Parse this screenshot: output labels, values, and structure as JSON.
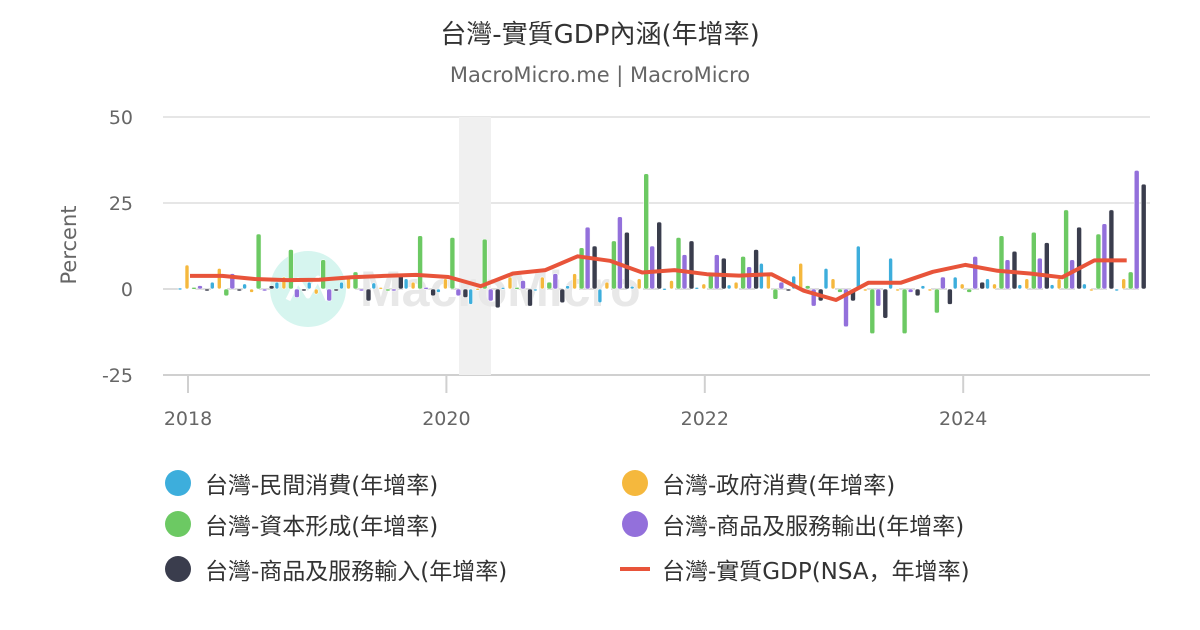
{
  "header": {
    "title": "台灣-實質GDP內涵(年增率)",
    "subtitle": "MacroMicro.me | MacroMicro"
  },
  "watermark": "MacroMicro",
  "chart_data": {
    "type": "bar",
    "title": "台灣-實質GDP內涵(年增率)",
    "subtitle": "MacroMicro.me | MacroMicro",
    "xlabel": "",
    "ylabel": "Percent",
    "ylim": [
      -25,
      50
    ],
    "yticks": [
      50,
      25,
      0,
      -25
    ],
    "xticks": [
      "2018",
      "2020",
      "2022",
      "2024"
    ],
    "grid": true,
    "legend_position": "bottom",
    "shaded_region": {
      "from": "2020Q2",
      "to": "2020Q3"
    },
    "categories": [
      "2018Q1",
      "2018Q2",
      "2018Q3",
      "2018Q4",
      "2019Q1",
      "2019Q2",
      "2019Q3",
      "2019Q4",
      "2020Q1",
      "2020Q2",
      "2020Q3",
      "2020Q4",
      "2021Q1",
      "2021Q2",
      "2021Q3",
      "2021Q4",
      "2022Q1",
      "2022Q2",
      "2022Q3",
      "2022Q4",
      "2023Q1",
      "2023Q2",
      "2023Q3",
      "2023Q4",
      "2024Q1",
      "2024Q2",
      "2024Q3",
      "2024Q4",
      "2025Q1",
      "2025Q2"
    ],
    "series": [
      {
        "name": "台灣-民間消費(年增率)",
        "type": "bar",
        "color": "#3DAEDC",
        "values": [
          0.3,
          2.0,
          1.5,
          2.0,
          2.0,
          2.0,
          1.8,
          3.0,
          -1.0,
          -4.5,
          0.5,
          -0.5,
          1.0,
          -4.0,
          0.8,
          0.2,
          0.5,
          1.2,
          7.5,
          3.8,
          6.0,
          12.5,
          9.0,
          1.0,
          3.5,
          3.0,
          1.3,
          1.3,
          1.5,
          0.0
        ]
      },
      {
        "name": "台灣-政府消費(年增率)",
        "type": "bar",
        "color": "#F5B83D",
        "values": [
          7.0,
          6.0,
          -1.0,
          3.5,
          -1.5,
          3.5,
          0.5,
          2.0,
          3.0,
          0.2,
          3.5,
          3.5,
          4.5,
          2.0,
          3.0,
          2.5,
          1.5,
          2.0,
          4.5,
          7.5,
          3.0,
          0.0,
          0.0,
          0.0,
          1.5,
          1.5,
          3.0,
          3.0,
          0.0,
          3.0
        ]
      },
      {
        "name": "台灣-資本形成(年增率)",
        "type": "bar",
        "color": "#6CC963",
        "values": [
          0.5,
          -2.0,
          16.0,
          11.5,
          8.5,
          5.0,
          -0.5,
          15.5,
          15.0,
          14.5,
          0.5,
          2.0,
          12.0,
          14.0,
          33.5,
          15.0,
          4.0,
          9.5,
          -3.0,
          1.0,
          -1.0,
          -13.0,
          -13.0,
          -7.0,
          -1.0,
          15.5,
          16.5,
          23.0,
          16.0,
          5.0
        ]
      },
      {
        "name": "台灣-商品及服務輸出(年增率)",
        "type": "bar",
        "color": "#9370DB",
        "values": [
          1.0,
          4.5,
          0.0,
          -2.5,
          -3.5,
          0.0,
          0.0,
          0.5,
          -2.0,
          -3.5,
          2.5,
          4.5,
          18.0,
          21.0,
          12.5,
          10.0,
          10.0,
          6.5,
          2.0,
          -5.0,
          -11.0,
          -5.0,
          -1.0,
          3.5,
          9.5,
          8.5,
          9.0,
          8.5,
          19.0,
          34.5
        ]
      },
      {
        "name": "台灣-商品及服務輸入(年增率)",
        "type": "bar",
        "color": "#3A3D4D",
        "values": [
          0.0,
          0.0,
          1.0,
          -0.5,
          -0.5,
          -3.5,
          4.5,
          -2.0,
          -2.5,
          -5.5,
          -5.0,
          -4.0,
          12.5,
          16.5,
          19.5,
          14.0,
          9.0,
          11.5,
          0.0,
          -3.5,
          -3.5,
          -8.5,
          -2.0,
          -4.5,
          2.0,
          11.0,
          13.5,
          18.0,
          23.0,
          30.5
        ]
      },
      {
        "name": "台灣-實質GDP(NSA，年增率)",
        "type": "line",
        "color": "#E8543A",
        "values": [
          3.8,
          3.8,
          2.9,
          2.6,
          2.7,
          3.4,
          3.8,
          4.1,
          3.5,
          0.8,
          4.5,
          5.5,
          9.5,
          8.2,
          4.8,
          5.5,
          4.3,
          3.9,
          4.3,
          -0.5,
          -3.2,
          1.8,
          1.8,
          5.0,
          7.0,
          5.3,
          4.5,
          3.4,
          8.3,
          8.3
        ]
      }
    ]
  },
  "legend": {
    "items": [
      {
        "label": "台灣-民間消費(年增率)",
        "color": "#3DAEDC",
        "marker": "dot"
      },
      {
        "label": "台灣-政府消費(年增率)",
        "color": "#F5B83D",
        "marker": "dot"
      },
      {
        "label": "台灣-資本形成(年增率)",
        "color": "#6CC963",
        "marker": "dot"
      },
      {
        "label": "台灣-商品及服務輸出(年增率)",
        "color": "#9370DB",
        "marker": "dot"
      },
      {
        "label": "台灣-商品及服務輸入(年增率)",
        "color": "#3A3D4D",
        "marker": "dot"
      },
      {
        "label": "台灣-實質GDP(NSA，年增率)",
        "color": "#E8543A",
        "marker": "line"
      }
    ]
  }
}
